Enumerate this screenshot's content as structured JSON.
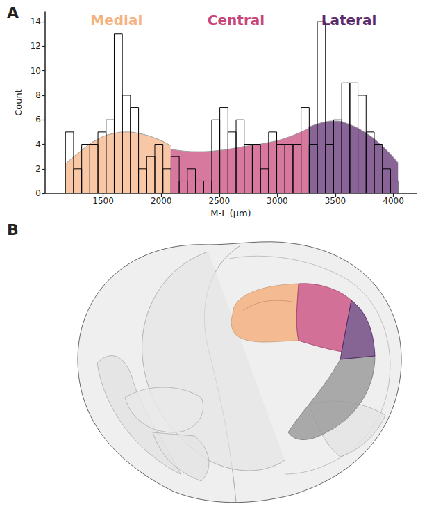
{
  "panel_labels": [
    "A",
    "B"
  ],
  "chart_data": {
    "type": "histogram",
    "xlabel": "M-L (µm)",
    "ylabel": "Count",
    "bins": [
      1175,
      1245,
      1315,
      1385,
      1455,
      1525,
      1595,
      1665,
      1735,
      1805,
      1875,
      1945,
      2015,
      2085,
      2155,
      2225,
      2295,
      2365,
      2435,
      2505,
      2575,
      2645,
      2715,
      2785,
      2855,
      2925,
      2995,
      3065,
      3135,
      3205,
      3275,
      3345,
      3415,
      3485,
      3555,
      3625,
      3695,
      3765,
      3835,
      3905,
      3975,
      4045
    ],
    "counts": [
      5,
      2,
      4,
      4,
      5,
      6,
      13,
      8,
      7,
      2,
      3,
      4,
      2,
      3,
      1,
      2,
      1,
      1,
      6,
      7,
      5,
      6,
      4,
      4,
      2,
      5,
      4,
      4,
      4,
      7,
      4,
      14,
      4,
      6,
      9,
      9,
      8,
      5,
      4,
      2,
      1
    ],
    "color": "#000000",
    "xlim": [
      1000,
      4200
    ],
    "xticks": [
      1500,
      2000,
      2500,
      3000,
      3500,
      4000
    ],
    "ylim": [
      0,
      14.8
    ],
    "yticks": [
      0,
      2,
      4,
      6,
      8,
      10,
      12,
      14
    ],
    "grid": false,
    "series": [
      {
        "name": "Medial",
        "type": "area",
        "color": "#f5b283",
        "x": [
          1175,
          1300,
          1450,
          1600,
          1700,
          1800,
          1950,
          2080
        ],
        "values": [
          2.4,
          3.4,
          4.4,
          4.9,
          5.0,
          4.9,
          4.5,
          3.9
        ]
      },
      {
        "name": "Central",
        "type": "area",
        "color": "#c8457a",
        "x": [
          2080,
          2300,
          2500,
          2700,
          2900,
          3100,
          3270
        ],
        "values": [
          3.6,
          3.4,
          3.5,
          3.8,
          4.1,
          4.6,
          5.3
        ]
      },
      {
        "name": "Lateral",
        "type": "area",
        "color": "#5a2a6e",
        "x": [
          3270,
          3400,
          3500,
          3600,
          3750,
          3900,
          4040
        ],
        "values": [
          5.4,
          5.8,
          5.9,
          5.7,
          5.0,
          3.9,
          2.5
        ]
      }
    ]
  }
}
